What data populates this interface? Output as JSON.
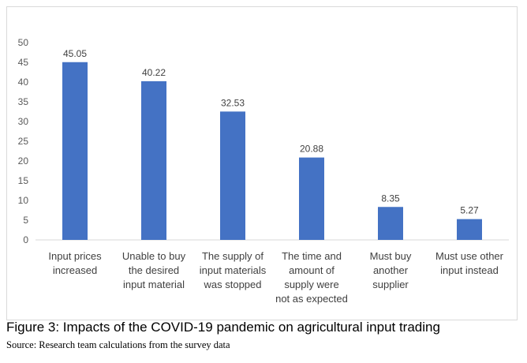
{
  "chart_data": {
    "type": "bar",
    "categories": [
      [
        "Input prices",
        "increased"
      ],
      [
        "Unable to buy",
        "the desired",
        "input material"
      ],
      [
        "The supply of",
        "input materials",
        "was stopped"
      ],
      [
        "The time and",
        "amount of",
        "supply were",
        "not as expected"
      ],
      [
        "Must buy",
        "another",
        "supplier"
      ],
      [
        "Must use other",
        "input instead"
      ]
    ],
    "values": [
      45.05,
      40.22,
      32.53,
      20.88,
      8.35,
      5.27
    ],
    "data_labels": [
      "45.05",
      "40.22",
      "32.53",
      "20.88",
      "8.35",
      "5.27"
    ],
    "ylim": [
      0,
      50
    ],
    "yticks": [
      0,
      5,
      10,
      15,
      20,
      25,
      30,
      35,
      40,
      45,
      50
    ],
    "bar_color": "#4472c4",
    "grid": false,
    "legend": "none"
  },
  "caption": "Figure 3: Impacts of the COVID-19 pandemic on agricultural input trading",
  "source": "Source: Research team calculations from the survey data"
}
